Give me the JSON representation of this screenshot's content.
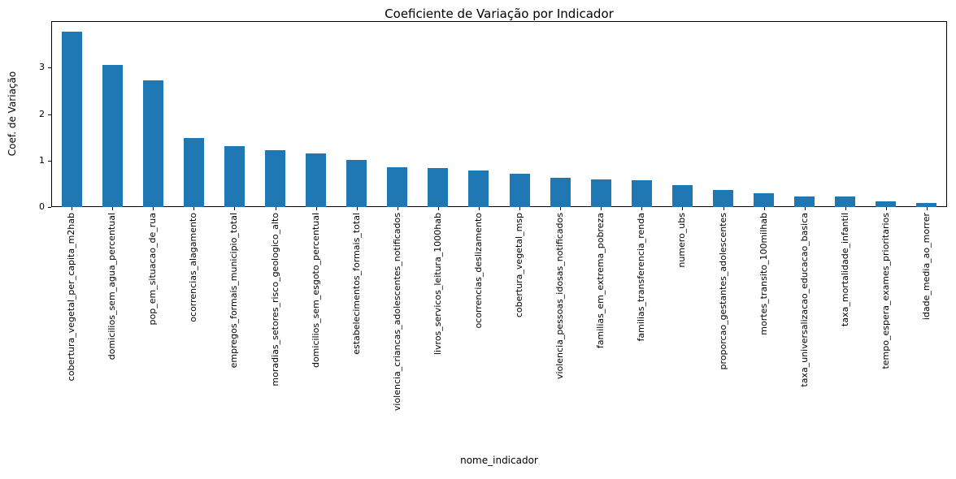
{
  "chart_data": {
    "type": "bar",
    "title": "Coeficiente de Variação por Indicador",
    "xlabel": "nome_indicador",
    "ylabel": "Coef. de Variação",
    "ylim": [
      0,
      4.0
    ],
    "yticks": [
      0,
      1,
      2,
      3
    ],
    "grid": false,
    "legend": "none",
    "bar_color": "#1f77b4",
    "categories": [
      "cobertura_vegetal_per_capita_m2hab",
      "domicilios_sem_agua_percentual",
      "pop_em_situacao_de_rua",
      "ocorrencias_alagamento",
      "empregos_formais_municipio_total",
      "moradias_setores_risco_geologico_alto",
      "domicilios_sem_esgoto_percentual",
      "estabelecimentos_formais_total",
      "violencia_criancas_adolescentes_notificados",
      "livros_servicos_leitura_1000hab",
      "ocorrencias_deslizamento",
      "cobertura_vegetal_msp",
      "violencia_pessoas_idosas_notificados",
      "familias_em_extrema_pobreza",
      "familias_transferencia_renda",
      "numero_ubs",
      "proporcao_gestantes_adolescentes",
      "mortes_transito_100milhab",
      "taxa_universalizacao_educacao_basica",
      "taxa_mortalidade_infantil",
      "tempo_espera_exames_prioritarios",
      "idade_media_ao_morrer"
    ],
    "values": [
      3.78,
      3.05,
      2.72,
      1.48,
      1.31,
      1.23,
      1.16,
      1.01,
      0.86,
      0.84,
      0.78,
      0.72,
      0.63,
      0.59,
      0.57,
      0.48,
      0.36,
      0.3,
      0.23,
      0.22,
      0.13,
      0.09
    ]
  }
}
